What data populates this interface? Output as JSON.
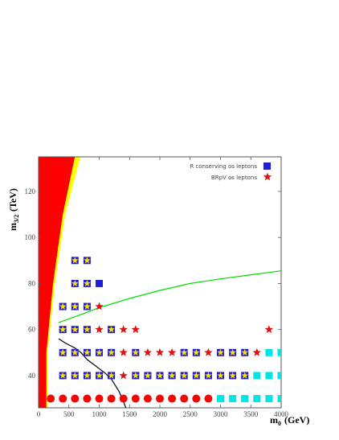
{
  "chart_data": {
    "type": "scatter",
    "title": "",
    "xlabel": "m",
    "xlabel_sub": "0",
    "xlabel_unit": "(GeV)",
    "ylabel": "m",
    "ylabel_sub": "3/2",
    "ylabel_unit": "(TeV)",
    "xlim": [
      0,
      4000
    ],
    "ylim": [
      26,
      135
    ],
    "x_ticks": [
      0,
      500,
      1000,
      1500,
      2000,
      2500,
      3000,
      3500,
      4000
    ],
    "y_ticks": [
      40,
      60,
      80,
      100,
      120
    ],
    "legend_position": "top-right",
    "legend": [
      {
        "label": "R conserving os leptons",
        "marker": "square",
        "color": "#1f1fd0"
      },
      {
        "label": "BRpV os leptons",
        "marker": "star",
        "color": "#e01010"
      }
    ],
    "regions": [
      {
        "color": "#ff0000",
        "boundary": [
          [
            0,
            26
          ],
          [
            130,
            26
          ],
          [
            130,
            50
          ],
          [
            240,
            80
          ],
          [
            400,
            110
          ],
          [
            600,
            135
          ],
          [
            0,
            135
          ]
        ]
      },
      {
        "color": "#ffff00",
        "boundary": [
          [
            130,
            26
          ],
          [
            150,
            26
          ],
          [
            150,
            50
          ],
          [
            270,
            80
          ],
          [
            440,
            110
          ],
          [
            690,
            135
          ],
          [
            600,
            135
          ],
          [
            400,
            110
          ],
          [
            240,
            80
          ],
          [
            130,
            50
          ]
        ]
      }
    ],
    "curves": [
      {
        "color": "#00dd00",
        "points": [
          [
            330,
            63
          ],
          [
            700,
            66.5
          ],
          [
            1000,
            69.5
          ],
          [
            1500,
            73.5
          ],
          [
            2000,
            77
          ],
          [
            2500,
            80
          ],
          [
            3000,
            82
          ],
          [
            3500,
            83.8
          ],
          [
            4000,
            85.5
          ]
        ]
      },
      {
        "color": "#000000",
        "points": [
          [
            330,
            56
          ],
          [
            450,
            54
          ],
          [
            600,
            52
          ],
          [
            700,
            50
          ],
          [
            800,
            47
          ],
          [
            900,
            45
          ],
          [
            1000,
            43
          ],
          [
            1100,
            41
          ],
          [
            1200,
            38.5
          ],
          [
            1260,
            36
          ],
          [
            1330,
            33
          ],
          [
            1370,
            30.5
          ],
          [
            1410,
            28
          ],
          [
            1440,
            26
          ]
        ]
      }
    ],
    "series": [
      {
        "name": "",
        "marker": "square-star",
        "points": [
          [
            600,
            90
          ],
          [
            800,
            90
          ],
          [
            600,
            80
          ],
          [
            800,
            80
          ],
          [
            400,
            70
          ],
          [
            600,
            70
          ],
          [
            800,
            70
          ],
          [
            400,
            60
          ],
          [
            600,
            60
          ],
          [
            800,
            60
          ],
          [
            1200,
            60
          ],
          [
            400,
            50
          ],
          [
            600,
            50
          ],
          [
            800,
            50
          ],
          [
            1000,
            50
          ],
          [
            1200,
            50
          ],
          [
            1600,
            50
          ],
          [
            2400,
            50
          ],
          [
            2600,
            50
          ],
          [
            3000,
            50
          ],
          [
            3200,
            50
          ],
          [
            3400,
            50
          ],
          [
            400,
            40
          ],
          [
            600,
            40
          ],
          [
            800,
            40
          ],
          [
            1000,
            40
          ],
          [
            1200,
            40
          ],
          [
            1600,
            40
          ],
          [
            1800,
            40
          ],
          [
            2000,
            40
          ],
          [
            2200,
            40
          ],
          [
            2400,
            40
          ],
          [
            2600,
            40
          ],
          [
            2800,
            40
          ],
          [
            3000,
            40
          ],
          [
            3200,
            40
          ],
          [
            3400,
            40
          ]
        ]
      },
      {
        "name": "",
        "marker": "square",
        "color": "#1f1fd0",
        "points": [
          [
            1000,
            80
          ]
        ]
      },
      {
        "name": "",
        "marker": "star",
        "color": "#e01010",
        "points": [
          [
            1000,
            70
          ],
          [
            1000,
            60
          ],
          [
            1400,
            60
          ],
          [
            1600,
            60
          ],
          [
            3800,
            60
          ],
          [
            1400,
            50
          ],
          [
            1800,
            50
          ],
          [
            2000,
            50
          ],
          [
            2200,
            50
          ],
          [
            2800,
            50
          ],
          [
            3600,
            50
          ],
          [
            1400,
            40
          ]
        ]
      },
      {
        "name": "",
        "marker": "square",
        "color": "#00e5e5",
        "points": [
          [
            3800,
            50
          ],
          [
            4000,
            50
          ],
          [
            3600,
            40
          ],
          [
            3800,
            40
          ],
          [
            4000,
            40
          ],
          [
            3000,
            30
          ],
          [
            3200,
            30
          ],
          [
            3400,
            30
          ],
          [
            3600,
            30
          ],
          [
            3800,
            30
          ],
          [
            4000,
            30
          ]
        ]
      },
      {
        "name": "",
        "marker": "circle",
        "color": "#ff0000",
        "points": [
          [
            200,
            30
          ],
          [
            400,
            30
          ],
          [
            600,
            30
          ],
          [
            800,
            30
          ],
          [
            1000,
            30
          ],
          [
            1200,
            30
          ],
          [
            1400,
            30
          ],
          [
            1600,
            30
          ],
          [
            1800,
            30
          ],
          [
            2000,
            30
          ],
          [
            2200,
            30
          ],
          [
            2400,
            30
          ],
          [
            2600,
            30
          ],
          [
            2800,
            30
          ]
        ]
      }
    ]
  }
}
